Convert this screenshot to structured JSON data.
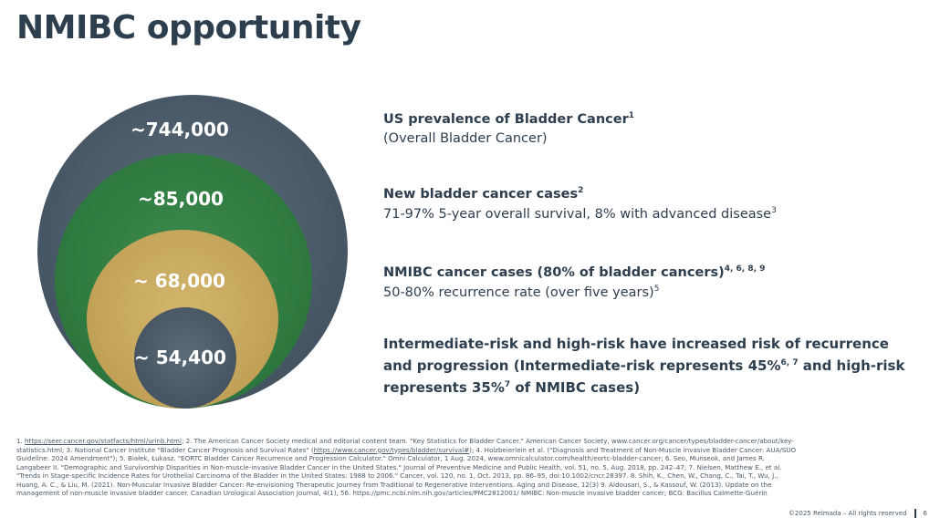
{
  "title": "NMIBC opportunity",
  "circles": [
    {
      "value": "~744,000",
      "color": "#4a5a68"
    },
    {
      "value": "~85,000",
      "color": "#2f7a40"
    },
    {
      "value": "~ 68,000",
      "color": "#c4a55b"
    },
    {
      "value": "~ 54,400",
      "color": "#4a5866"
    }
  ],
  "items": [
    {
      "heading": "US prevalence of Bladder Cancer",
      "heading_sup": "1",
      "line": "(Overall Bladder Cancer)",
      "line_sup": ""
    },
    {
      "heading": "New bladder cancer cases",
      "heading_sup": "2",
      "line": "71-97% 5-year overall survival, 8% with advanced disease",
      "line_sup": "3"
    },
    {
      "heading": "NMIBC cancer cases (80% of bladder cancers)",
      "heading_sup": "4, 6, 8, 9",
      "line": "50-80% recurrence rate (over five years)",
      "line_sup": "5"
    },
    {
      "part1": "Intermediate-risk and high-risk have increased risk of recurrence and progression (Intermediate-risk represents 45%",
      "sup1": "6, 7",
      "part2": " and high-risk represents 35%",
      "sup2": "7",
      "part3": " of NMIBC cases)"
    }
  ],
  "references": {
    "r1_num": "1.",
    "r1_link": "https://seer.cancer.gov/statfacts/html/urinb.html",
    "r1_rest": "; 2. The American Cancer Society medical and editorial content team. \"Key Statistics for Bladder Cancer.\" American Cancer Society, www.cancer.org/cancer/types/bladder-cancer/about/key-statistics.html; 3. National Cancer Institute \"Bladder Cancer Prognosis and Survival Rates\" (",
    "r3_link": "https://www.cancer.gov/types/bladder/survival#",
    "r3_rest": "); 4. Holzbeierlein et al. (\"Diagnosis and Treatment of Non-Muscle Invasive Bladder Cancer: AUA/SUO Guideline: 2024 Amendment\"); 5. Białek, Łukasz. \"EORTC Bladder Cancer Recurrence and Progression Calculator.\" Omni Calculator, 1 Aug. 2024, www.omnicalculator.com/health/eortc-bladder-cancer; 6. Seo, Munseok, and James R. Langabeer II. \"Demographic and Survivorship Disparities in Non-muscle-invasive Bladder Cancer in the United States.\" Journal of Preventive Medicine and Public Health, vol. 51, no. 5, Aug. 2018, pp. 242–47; 7. Nielsen, Matthew E., et al. \"Trends in Stage-specific Incidence Rates for Urothelial Carcinoma of the Bladder in the United States: 1988 to 2006.\" Cancer, vol. 120, no. 1, Oct. 2013, pp. 86–95, doi:10.1002/cncr.28397. 8. Shih, K., Chen, W., Chang, C., Tai, T., Wu, J., Huang, A. C., & Liu, M. (2021). Non-Muscular Invasive Bladder Cancer: Re-envisioning Therapeutic Journey from Traditional to Regenerative Interventions. Aging and Disease, 12(3) 9. Aldousari, S., & Kassouf, W. (2013). Update on the management of non-muscle invasive bladder cancer. Canadian Urological Association Journal, 4(1), 56. https://pmc.ncbi.nlm.nih.gov/articles/PMC2812001/ NMIBC: Non-muscle invasive bladder cancer; BCG: Bacillus Calmette-Guérin"
  },
  "footer": {
    "copyright": "©2025 Relmada – All rights reserved",
    "page": "6"
  }
}
